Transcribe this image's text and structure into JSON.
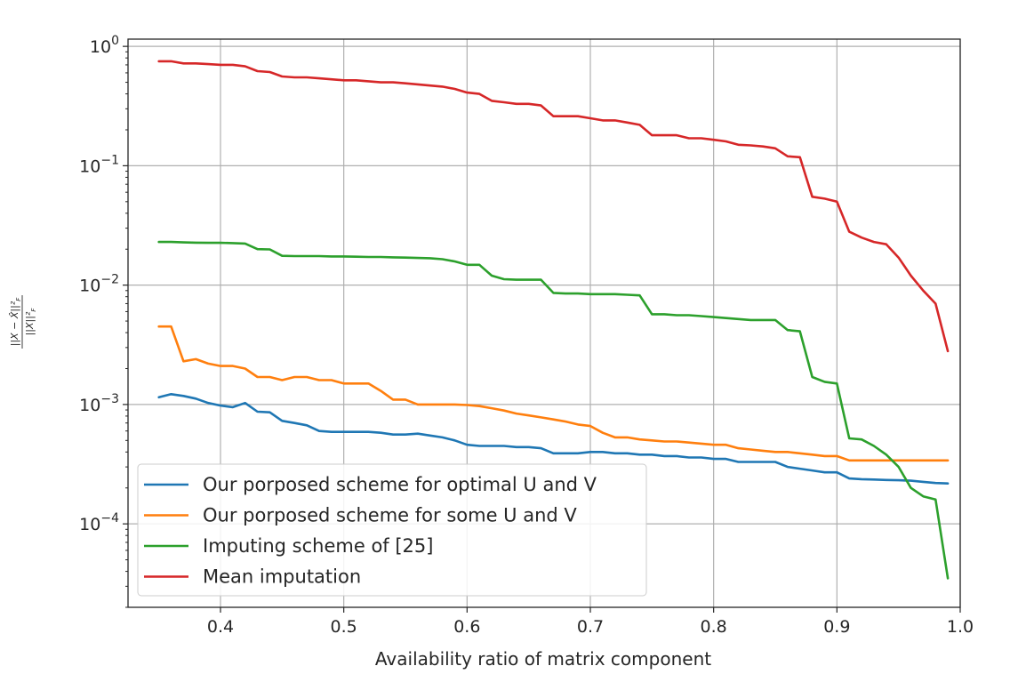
{
  "chart_data": {
    "type": "line",
    "xlabel": "Availability ratio of matrix component",
    "ylabel": "||X − X̂||²_F / ||X||²_F",
    "xlim": [
      0.325,
      1.0
    ],
    "ylim": [
      2e-05,
      1.15
    ],
    "yscale": "log",
    "grid": true,
    "legend_position": "lower-left",
    "x_ticks": [
      0.4,
      0.5,
      0.6,
      0.7,
      0.8,
      0.9,
      1.0
    ],
    "x_tick_labels": [
      "0.4",
      "0.5",
      "0.6",
      "0.7",
      "0.8",
      "0.9",
      "1.0"
    ],
    "y_ticks": [
      {
        "value": 1,
        "base": "10",
        "exp": "0"
      },
      {
        "value": 0.1,
        "base": "10",
        "exp": "−1"
      },
      {
        "value": 0.01,
        "base": "10",
        "exp": "−2"
      },
      {
        "value": 0.001,
        "base": "10",
        "exp": "−3"
      },
      {
        "value": 0.0001,
        "base": "10",
        "exp": "−4"
      }
    ],
    "x": [
      0.35,
      0.36,
      0.37,
      0.38,
      0.39,
      0.4,
      0.41,
      0.42,
      0.43,
      0.44,
      0.45,
      0.46,
      0.47,
      0.48,
      0.49,
      0.5,
      0.51,
      0.52,
      0.53,
      0.54,
      0.55,
      0.56,
      0.57,
      0.58,
      0.59,
      0.6,
      0.61,
      0.62,
      0.63,
      0.64,
      0.65,
      0.66,
      0.67,
      0.68,
      0.69,
      0.7,
      0.71,
      0.72,
      0.73,
      0.74,
      0.75,
      0.76,
      0.77,
      0.78,
      0.79,
      0.8,
      0.81,
      0.82,
      0.83,
      0.84,
      0.85,
      0.86,
      0.87,
      0.88,
      0.89,
      0.9,
      0.91,
      0.92,
      0.93,
      0.94,
      0.95,
      0.96,
      0.97,
      0.98,
      0.99
    ],
    "series": [
      {
        "name": "Our porposed scheme for optimal U and V",
        "color": "#1f77b4",
        "values": [
          0.00115,
          0.00122,
          0.00118,
          0.00112,
          0.00103,
          0.00098,
          0.00095,
          0.00103,
          0.00087,
          0.00086,
          0.00073,
          0.0007,
          0.00067,
          0.0006,
          0.00059,
          0.00059,
          0.00059,
          0.00059,
          0.00058,
          0.00056,
          0.00056,
          0.00057,
          0.00055,
          0.00053,
          0.0005,
          0.00046,
          0.00045,
          0.00045,
          0.00045,
          0.00044,
          0.00044,
          0.00043,
          0.00039,
          0.00039,
          0.00039,
          0.0004,
          0.0004,
          0.00039,
          0.00039,
          0.00038,
          0.00038,
          0.00037,
          0.00037,
          0.00036,
          0.00036,
          0.00035,
          0.00035,
          0.00033,
          0.00033,
          0.00033,
          0.00033,
          0.0003,
          0.00029,
          0.00028,
          0.00027,
          0.00027,
          0.00024,
          0.000237,
          0.000235,
          0.000233,
          0.000232,
          0.00023,
          0.000225,
          0.00022,
          0.000218
        ]
      },
      {
        "name": "Our porposed scheme for some U and V",
        "color": "#ff7f0e",
        "values": [
          0.0045,
          0.0045,
          0.0023,
          0.0024,
          0.0022,
          0.0021,
          0.0021,
          0.002,
          0.0017,
          0.0017,
          0.0016,
          0.0017,
          0.0017,
          0.0016,
          0.0016,
          0.0015,
          0.0015,
          0.0015,
          0.0013,
          0.0011,
          0.0011,
          0.001,
          0.001,
          0.001,
          0.001,
          0.00099,
          0.00097,
          0.00093,
          0.00089,
          0.00084,
          0.00081,
          0.00078,
          0.00075,
          0.00072,
          0.00068,
          0.00066,
          0.00058,
          0.00053,
          0.00053,
          0.00051,
          0.0005,
          0.00049,
          0.00049,
          0.00048,
          0.00047,
          0.00046,
          0.00046,
          0.00043,
          0.00042,
          0.00041,
          0.0004,
          0.0004,
          0.00039,
          0.00038,
          0.00037,
          0.00037,
          0.00034,
          0.00034,
          0.00034,
          0.00034,
          0.00034,
          0.00034,
          0.00034,
          0.00034,
          0.00034
        ]
      },
      {
        "name": "Imputing scheme of  [25]",
        "color": "#2ca02c",
        "values": [
          0.023,
          0.023,
          0.0228,
          0.0227,
          0.0226,
          0.0226,
          0.0225,
          0.0223,
          0.02,
          0.0199,
          0.0176,
          0.0175,
          0.0175,
          0.0175,
          0.0174,
          0.0174,
          0.0173,
          0.0172,
          0.0172,
          0.0171,
          0.017,
          0.0169,
          0.0168,
          0.0165,
          0.0158,
          0.0148,
          0.0148,
          0.012,
          0.0112,
          0.0111,
          0.0111,
          0.0111,
          0.0086,
          0.0085,
          0.0085,
          0.0084,
          0.0084,
          0.0084,
          0.0083,
          0.0082,
          0.0057,
          0.0057,
          0.0056,
          0.0056,
          0.0055,
          0.0054,
          0.0053,
          0.0052,
          0.0051,
          0.0051,
          0.0051,
          0.0042,
          0.0041,
          0.0017,
          0.00155,
          0.0015,
          0.00052,
          0.00051,
          0.00045,
          0.00038,
          0.0003,
          0.0002,
          0.00017,
          0.00016,
          3.5e-05
        ]
      },
      {
        "name": "Mean imputation",
        "color": "#d62728",
        "values": [
          0.75,
          0.75,
          0.72,
          0.72,
          0.71,
          0.7,
          0.7,
          0.68,
          0.62,
          0.61,
          0.56,
          0.55,
          0.55,
          0.54,
          0.53,
          0.52,
          0.52,
          0.51,
          0.5,
          0.5,
          0.49,
          0.48,
          0.47,
          0.46,
          0.44,
          0.41,
          0.4,
          0.35,
          0.34,
          0.33,
          0.33,
          0.32,
          0.26,
          0.26,
          0.26,
          0.25,
          0.24,
          0.24,
          0.23,
          0.22,
          0.18,
          0.18,
          0.18,
          0.17,
          0.17,
          0.165,
          0.16,
          0.15,
          0.148,
          0.145,
          0.14,
          0.12,
          0.118,
          0.055,
          0.053,
          0.05,
          0.028,
          0.025,
          0.023,
          0.022,
          0.017,
          0.012,
          0.009,
          0.007,
          0.0028
        ]
      }
    ]
  }
}
